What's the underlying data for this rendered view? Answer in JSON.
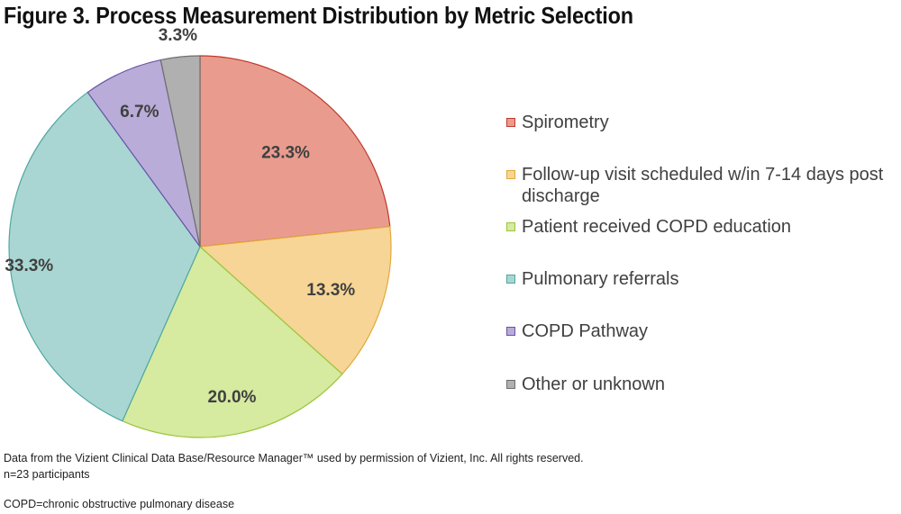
{
  "title": "Figure 3. Process Measurement Distribution by Metric Selection",
  "chart_data": {
    "type": "pie",
    "title": "Figure 3. Process Measurement Distribution by Metric Selection",
    "slices": [
      {
        "name": "Spirometry",
        "value": 23.3,
        "label": "23.3%",
        "fill": "#e99c8e",
        "stroke": "#c0392b"
      },
      {
        "name": "Follow-up visit scheduled w/in 7-14 days post discharge",
        "value": 13.3,
        "label": "13.3%",
        "fill": "#f6d596",
        "stroke": "#e3a93a"
      },
      {
        "name": "Patient received COPD education",
        "value": 20.0,
        "label": "20.0%",
        "fill": "#d6eaa0",
        "stroke": "#9bc53d"
      },
      {
        "name": "Pulmonary referrals",
        "value": 33.3,
        "label": "33.3%",
        "fill": "#a9d6d2",
        "stroke": "#4fa8a1"
      },
      {
        "name": "COPD Pathway",
        "value": 6.7,
        "label": "6.7%",
        "fill": "#b9acd8",
        "stroke": "#6a52a8"
      },
      {
        "name": "Other or unknown",
        "value": 3.3,
        "label": "3.3%",
        "fill": "#b0b0b0",
        "stroke": "#6e6e6e"
      }
    ],
    "start_angle": "12 o'clock",
    "direction": "clockwise",
    "legend_position": "right"
  },
  "footnotes": {
    "line1": "Data from the Vizient Clinical Data Base/Resource Manager™ used by permission of Vizient, Inc. All rights reserved.",
    "line2": "n=23 participants",
    "line3": "COPD=chronic obstructive pulmonary disease"
  }
}
